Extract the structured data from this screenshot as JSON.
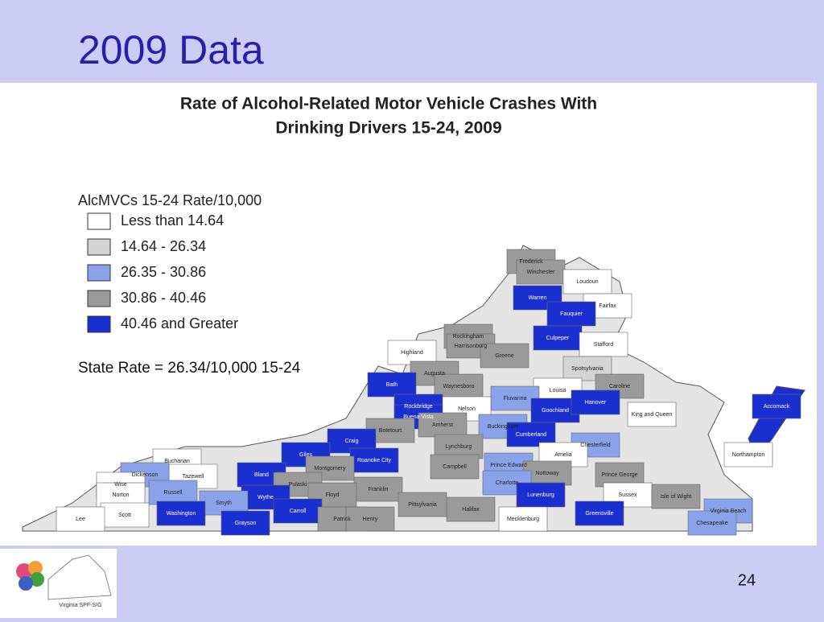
{
  "slide_title": "2009 Data",
  "map": {
    "title_lines": [
      "Rate of Alcohol-Related Motor Vehicle Crashes With",
      "Drinking Drivers 15-24, 2009"
    ],
    "legend": {
      "title": "AlcMVCs 15-24 Rate/10,000",
      "items": [
        {
          "label": "Less than 14.64",
          "color": "#ffffff"
        },
        {
          "label": "14.64 - 26.34",
          "color": "#d4d4d4"
        },
        {
          "label": "26.35 - 30.86",
          "color": "#8aa2ea"
        },
        {
          "label": "30.86 - 40.46",
          "color": "#9a9a9a"
        },
        {
          "label": "40.46 and Greater",
          "color": "#1a2fcf"
        }
      ]
    },
    "state_rate": "State Rate = 26.34/10,000 15-24",
    "counties": [
      {
        "name": "Frederick",
        "class": 3
      },
      {
        "name": "Winchester",
        "class": 3
      },
      {
        "name": "Loudoun",
        "class": 0
      },
      {
        "name": "Fairfax",
        "class": 0
      },
      {
        "name": "Warren",
        "class": 4
      },
      {
        "name": "Fauquier",
        "class": 4
      },
      {
        "name": "Highland",
        "class": 0
      },
      {
        "name": "Rockingham",
        "class": 3
      },
      {
        "name": "Harrisonburg",
        "class": 3
      },
      {
        "name": "Culpeper",
        "class": 4
      },
      {
        "name": "Stafford",
        "class": 0
      },
      {
        "name": "Greene",
        "class": 3
      },
      {
        "name": "Augusta",
        "class": 3
      },
      {
        "name": "Waynesboro",
        "class": 3
      },
      {
        "name": "Spotsylvania",
        "class": 1
      },
      {
        "name": "Caroline",
        "class": 3
      },
      {
        "name": "Bath",
        "class": 4
      },
      {
        "name": "Louisa",
        "class": 0
      },
      {
        "name": "Fluvanna",
        "class": 2
      },
      {
        "name": "Rockbridge",
        "class": 4
      },
      {
        "name": "Buena Vista",
        "class": 4
      },
      {
        "name": "Nelson",
        "class": 0
      },
      {
        "name": "Amherst",
        "class": 3
      },
      {
        "name": "Buckingham",
        "class": 2
      },
      {
        "name": "Goochland",
        "class": 4
      },
      {
        "name": "Hanover",
        "class": 4
      },
      {
        "name": "King and Queen",
        "class": 0
      },
      {
        "name": "Botetourt",
        "class": 3
      },
      {
        "name": "Craig",
        "class": 4
      },
      {
        "name": "Lynchburg",
        "class": 3
      },
      {
        "name": "Cumberland",
        "class": 4
      },
      {
        "name": "Chesterfield",
        "class": 2
      },
      {
        "name": "Giles",
        "class": 4
      },
      {
        "name": "Roanoke City",
        "class": 4
      },
      {
        "name": "Montgomery",
        "class": 3
      },
      {
        "name": "Amelia",
        "class": 0
      },
      {
        "name": "Buchanan",
        "class": 0
      },
      {
        "name": "Campbell",
        "class": 3
      },
      {
        "name": "Prince Edward",
        "class": 2
      },
      {
        "name": "Bland",
        "class": 4
      },
      {
        "name": "Tazewell",
        "class": 0
      },
      {
        "name": "Dickenson",
        "class": 2
      },
      {
        "name": "Pulaski",
        "class": 3
      },
      {
        "name": "Wise",
        "class": 0
      },
      {
        "name": "Norton",
        "class": 0
      },
      {
        "name": "Franklin",
        "class": 3
      },
      {
        "name": "Nottoway",
        "class": 3
      },
      {
        "name": "Prince George",
        "class": 3
      },
      {
        "name": "Sussex",
        "class": 0
      },
      {
        "name": "Russell",
        "class": 2
      },
      {
        "name": "Floyd",
        "class": 3
      },
      {
        "name": "Wythe",
        "class": 4
      },
      {
        "name": "Charlotte",
        "class": 2
      },
      {
        "name": "Northampton",
        "class": 0
      },
      {
        "name": "Smyth",
        "class": 2
      },
      {
        "name": "Pittsylvania",
        "class": 3
      },
      {
        "name": "Halifax",
        "class": 3
      },
      {
        "name": "Lunenburg",
        "class": 4
      },
      {
        "name": "Isle of Wight",
        "class": 3
      },
      {
        "name": "Scott",
        "class": 0
      },
      {
        "name": "Lee",
        "class": 0
      },
      {
        "name": "Washington",
        "class": 4
      },
      {
        "name": "Carroll",
        "class": 4
      },
      {
        "name": "Patrick",
        "class": 3
      },
      {
        "name": "Henry",
        "class": 3
      },
      {
        "name": "Greensville",
        "class": 4
      },
      {
        "name": "Mecklenburg",
        "class": 0
      },
      {
        "name": "Grayson",
        "class": 4
      },
      {
        "name": "Virginia Beach",
        "class": 2
      },
      {
        "name": "Chesapeake",
        "class": 2
      },
      {
        "name": "Accomack",
        "class": 4
      }
    ]
  },
  "logo_text": "Virginia SPF-SIG",
  "page_number": "24"
}
